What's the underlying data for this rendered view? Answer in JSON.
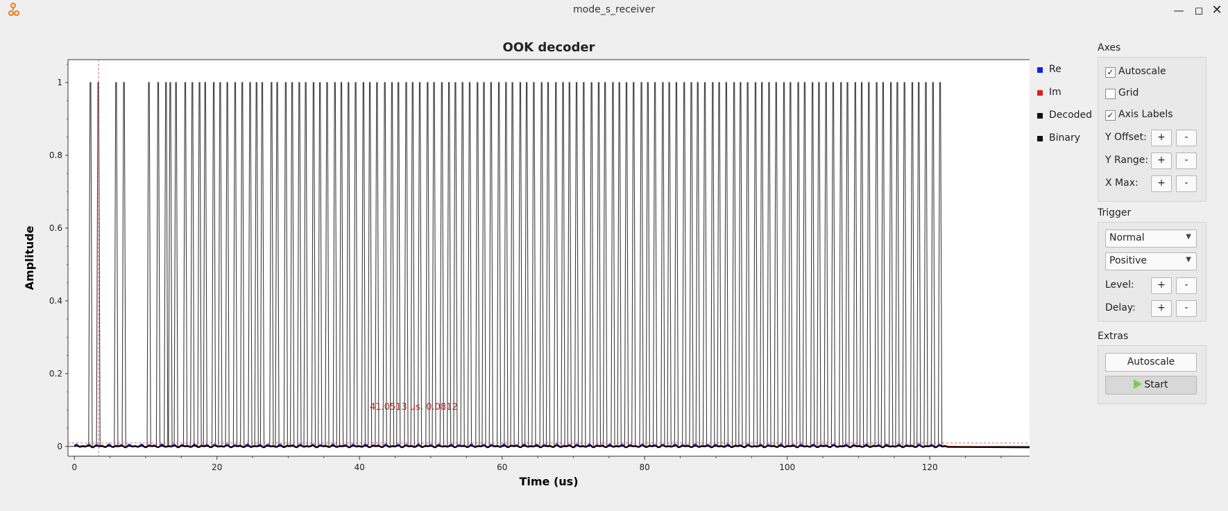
{
  "window": {
    "title": "mode_s_receiver"
  },
  "chart_data": {
    "type": "line",
    "title": "OOK decoder",
    "xlabel": "Time (us)",
    "ylabel": "Amplitude",
    "xlim": [
      -0.9,
      134
    ],
    "ylim": [
      -0.027,
      1.063
    ],
    "xticks": [
      0,
      20,
      40,
      60,
      80,
      100,
      120
    ],
    "yticks": [
      0,
      0.2,
      0.4,
      0.6,
      0.8,
      1
    ],
    "series": [
      {
        "name": "Re",
        "color": "#0000ff"
      },
      {
        "name": "Im",
        "color": "#ff0000"
      },
      {
        "name": "Decoded",
        "color": "#000000"
      },
      {
        "name": "Binary",
        "color": "#000000"
      }
    ],
    "binary_pulse_widths_us": 0.5,
    "binary_pulse_starts_us": [
      2.0,
      3.1,
      5.6,
      6.7,
      10.2,
      11.5,
      12.6,
      13.2,
      14.0,
      15.3,
      16.3,
      17.3,
      18.1,
      19.3,
      20.2,
      21.2,
      22.3,
      23.3,
      24.4,
      25.3,
      26.1,
      27.4,
      28.2,
      29.4,
      30.3,
      31.3,
      32.2,
      33.3,
      34.2,
      35.2,
      36.3,
      37.2,
      38.2,
      39.2,
      40.3,
      41.2,
      42.2,
      43.3,
      44.3,
      45.2,
      46.3,
      47.2,
      48.2,
      49.3,
      50.2,
      51.3,
      52.3,
      53.2,
      54.2,
      55.2,
      56.3,
      57.2,
      58.2,
      59.3,
      60.3,
      61.2,
      62.3,
      63.2,
      64.2,
      65.3,
      66.2,
      67.3,
      68.3,
      69.2,
      70.2,
      71.2,
      72.3,
      73.3,
      74.2,
      75.3,
      76.2,
      77.2,
      78.2,
      79.3,
      80.2,
      81.2,
      82.3,
      83.2,
      84.2,
      85.3,
      86.3,
      87.2,
      88.2,
      89.3,
      90.2,
      91.2,
      92.3,
      93.2,
      94.2,
      95.3,
      96.2,
      97.2,
      98.2,
      99.3,
      100.2,
      101.3,
      102.2,
      103.3,
      104.2,
      105.2,
      106.2,
      107.3,
      108.2,
      109.3,
      110.2,
      111.2,
      112.3,
      113.2,
      114.3,
      115.2,
      116.2,
      117.3,
      118.2,
      119.2,
      120.2,
      121.2
    ],
    "cursor": {
      "label": "41.0513 us, 0.0812",
      "x": 3.4,
      "y": 0.0095
    }
  },
  "legend": [
    "Re",
    "Im",
    "Decoded",
    "Binary"
  ],
  "axes_panel": {
    "title": "Axes",
    "autoscale": {
      "label": "Autoscale",
      "checked": true
    },
    "grid": {
      "label": "Grid",
      "checked": false
    },
    "axis_labels": {
      "label": "Axis Labels",
      "checked": true
    },
    "y_offset": "Y Offset:",
    "y_range": "Y Range:",
    "x_max": "X Max:",
    "plus": "+",
    "minus": "-"
  },
  "trigger_panel": {
    "title": "Trigger",
    "mode": "Normal",
    "slope": "Positive",
    "level": "Level:",
    "delay": "Delay:"
  },
  "extras_panel": {
    "title": "Extras",
    "autoscale_button": "Autoscale",
    "start_button": "Start"
  }
}
